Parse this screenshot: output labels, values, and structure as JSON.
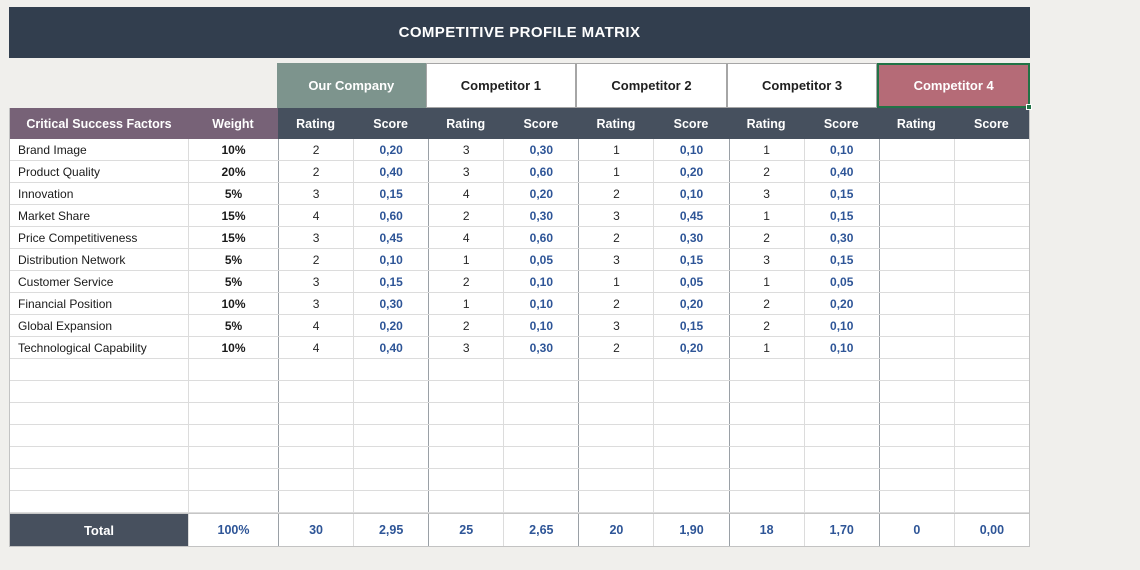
{
  "title": "COMPETITIVE PROFILE MATRIX",
  "colors": {
    "title_bar": "#323e4e",
    "subheader_slate": "#46505e",
    "factors_purple": "#776277",
    "our_company_green": "#7d948d",
    "competitor4_rose": "#b56b77",
    "selection_green": "#217346",
    "score_blue": "#2e5597",
    "total_dark": "#47505e",
    "background": "#f0efec"
  },
  "table": {
    "factors_header": "Critical Success Factors",
    "weight_header": "Weight",
    "rating_label": "Rating",
    "score_label": "Score",
    "companies": [
      {
        "name": "Our Company"
      },
      {
        "name": "Competitor 1"
      },
      {
        "name": "Competitor 2"
      },
      {
        "name": "Competitor 3"
      },
      {
        "name": "Competitor 4",
        "selected": true
      }
    ],
    "rows": [
      {
        "factor": "Brand Image",
        "weight": "10%",
        "values": [
          "2",
          "0,20",
          "3",
          "0,30",
          "1",
          "0,10",
          "1",
          "0,10",
          "",
          ""
        ]
      },
      {
        "factor": "Product Quality",
        "weight": "20%",
        "values": [
          "2",
          "0,40",
          "3",
          "0,60",
          "1",
          "0,20",
          "2",
          "0,40",
          "",
          ""
        ]
      },
      {
        "factor": "Innovation",
        "weight": "5%",
        "values": [
          "3",
          "0,15",
          "4",
          "0,20",
          "2",
          "0,10",
          "3",
          "0,15",
          "",
          ""
        ]
      },
      {
        "factor": "Market Share",
        "weight": "15%",
        "values": [
          "4",
          "0,60",
          "2",
          "0,30",
          "3",
          "0,45",
          "1",
          "0,15",
          "",
          ""
        ]
      },
      {
        "factor": "Price Competitiveness",
        "weight": "15%",
        "values": [
          "3",
          "0,45",
          "4",
          "0,60",
          "2",
          "0,30",
          "2",
          "0,30",
          "",
          ""
        ]
      },
      {
        "factor": "Distribution Network",
        "weight": "5%",
        "values": [
          "2",
          "0,10",
          "1",
          "0,05",
          "3",
          "0,15",
          "3",
          "0,15",
          "",
          ""
        ]
      },
      {
        "factor": "Customer Service",
        "weight": "5%",
        "values": [
          "3",
          "0,15",
          "2",
          "0,10",
          "1",
          "0,05",
          "1",
          "0,05",
          "",
          ""
        ]
      },
      {
        "factor": "Financial Position",
        "weight": "10%",
        "values": [
          "3",
          "0,30",
          "1",
          "0,10",
          "2",
          "0,20",
          "2",
          "0,20",
          "",
          ""
        ]
      },
      {
        "factor": "Global Expansion",
        "weight": "5%",
        "values": [
          "4",
          "0,20",
          "2",
          "0,10",
          "3",
          "0,15",
          "2",
          "0,10",
          "",
          ""
        ]
      },
      {
        "factor": "Technological Capability",
        "weight": "10%",
        "values": [
          "4",
          "0,40",
          "3",
          "0,30",
          "2",
          "0,20",
          "1",
          "0,10",
          "",
          ""
        ]
      }
    ],
    "empty_row_count": 7,
    "totals": {
      "label": "Total",
      "weight": "100%",
      "values": [
        "30",
        "2,95",
        "25",
        "2,65",
        "20",
        "1,90",
        "18",
        "1,70",
        "0",
        "0,00"
      ]
    }
  }
}
